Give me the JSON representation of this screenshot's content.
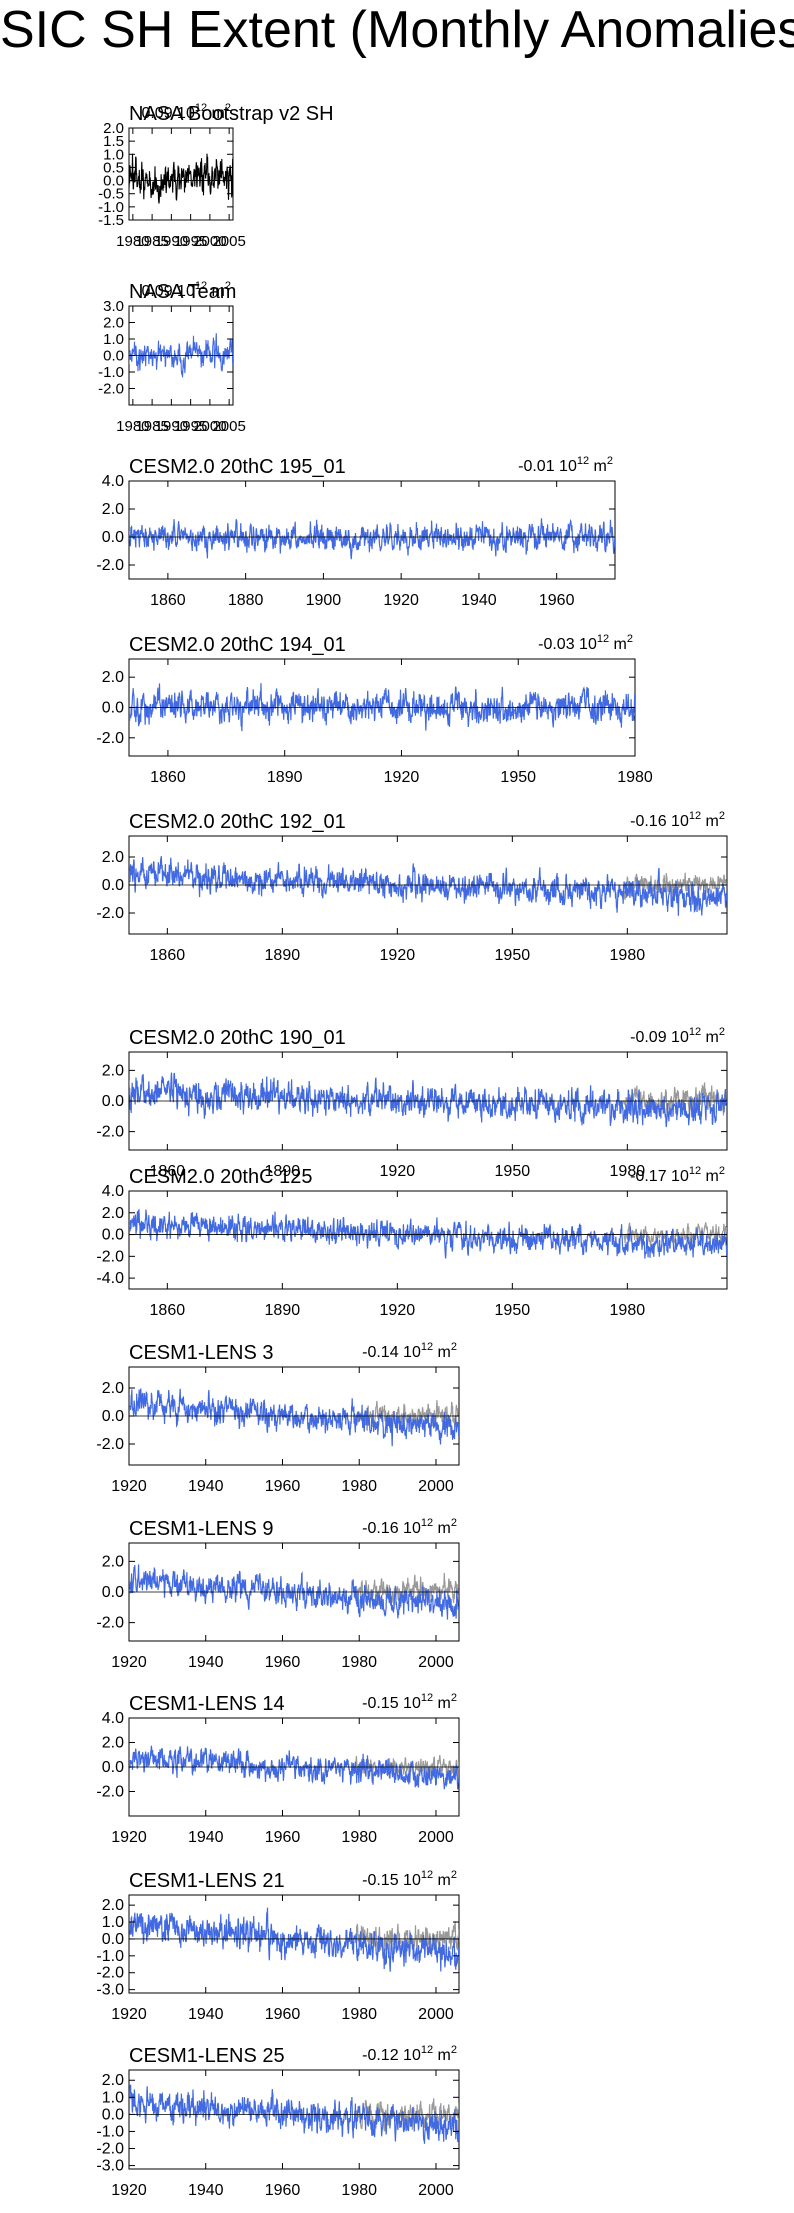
{
  "page": {
    "title": "SIC SH Extent (Monthly Anomalies)"
  },
  "colors": {
    "obs": "#000000",
    "model": "#4169e1",
    "obs_overlay": "#999999"
  },
  "chart_data": [
    {
      "type": "line",
      "title": "NASA Bootstrap v2 SH",
      "trend": "0.09 10",
      "trend_exp": "12",
      "trend_unit": " m",
      "trend_sup": "2",
      "xlim": [
        1979,
        2006
      ],
      "ylim": [
        -1.5,
        2.0
      ],
      "xticks": [
        1980,
        1985,
        1990,
        1995,
        2000,
        2005
      ],
      "yticks": [
        -1.5,
        -1.0,
        -0.5,
        0.0,
        0.5,
        1.0,
        1.5,
        2.0
      ],
      "ytick_labels": [
        "-1.5",
        "-1.0",
        "-0.5",
        "0.0",
        "0.5",
        "1.0",
        "1.5",
        "2.0"
      ],
      "series": [
        {
          "name": "obs",
          "color": "#000000",
          "start": 1979,
          "end": 2006,
          "amp": 0.45,
          "trend_per_year": 0.007,
          "seed": 11
        }
      ]
    },
    {
      "type": "line",
      "title": "NASA Team",
      "trend": "0.09 10",
      "trend_exp": "12",
      "trend_unit": " m",
      "trend_sup": "2",
      "xlim": [
        1979,
        2006
      ],
      "ylim": [
        -3.0,
        3.0
      ],
      "xticks": [
        1980,
        1985,
        1990,
        1995,
        2000,
        2005
      ],
      "yticks": [
        -2.0,
        -1.0,
        0.0,
        1.0,
        2.0,
        3.0
      ],
      "ytick_labels": [
        "-2.0",
        "-1.0",
        "0.0",
        "1.0",
        "2.0",
        "3.0"
      ],
      "series": [
        {
          "name": "model",
          "color": "#4169e1",
          "start": 1979,
          "end": 2006,
          "amp": 0.5,
          "trend_per_year": 0.007,
          "seed": 23
        }
      ]
    },
    {
      "type": "line",
      "title": "CESM2.0 20thC 195_01",
      "trend": "-0.01 10",
      "trend_exp": "12",
      "trend_unit": " m",
      "trend_sup": "2",
      "xlim": [
        1850,
        1975
      ],
      "ylim": [
        -3.0,
        4.0
      ],
      "xticks": [
        1860,
        1880,
        1900,
        1920,
        1940,
        1960
      ],
      "yticks": [
        -2.0,
        0.0,
        2.0,
        4.0
      ],
      "ytick_labels": [
        "-2.0",
        "0.0",
        "2.0",
        "4.0"
      ],
      "series": [
        {
          "name": "model",
          "color": "#4169e1",
          "start": 1850,
          "end": 1975,
          "amp": 0.55,
          "trend_per_year": -0.0002,
          "seed": 31
        }
      ]
    },
    {
      "type": "line",
      "title": "CESM2.0 20thC 194_01",
      "trend": "-0.03 10",
      "trend_exp": "12",
      "trend_unit": " m",
      "trend_sup": "2",
      "xlim": [
        1850,
        1980
      ],
      "ylim": [
        -3.2,
        3.2
      ],
      "xticks": [
        1860,
        1890,
        1920,
        1950,
        1980
      ],
      "yticks": [
        -2.0,
        0.0,
        2.0
      ],
      "ytick_labels": [
        "-2.0",
        "0.0",
        "2.0"
      ],
      "series": [
        {
          "name": "obs",
          "color": "#999999",
          "start": 1979,
          "end": 1980,
          "amp": 0.5,
          "trend_per_year": 0.0,
          "seed": 41
        },
        {
          "name": "model",
          "color": "#4169e1",
          "start": 1850,
          "end": 1980,
          "amp": 0.6,
          "trend_per_year": -0.0005,
          "seed": 43
        }
      ]
    },
    {
      "type": "line",
      "title": "CESM2.0 20thC 192_01",
      "trend": "-0.16 10",
      "trend_exp": "12",
      "trend_unit": " m",
      "trend_sup": "2",
      "xlim": [
        1850,
        2006
      ],
      "ylim": [
        -3.5,
        3.5
      ],
      "xticks": [
        1860,
        1890,
        1920,
        1950,
        1980
      ],
      "yticks": [
        -2.0,
        0.0,
        2.0
      ],
      "ytick_labels": [
        "-2.0",
        "0.0",
        "2.0"
      ],
      "series": [
        {
          "name": "obs",
          "color": "#999999",
          "start": 1979,
          "end": 2006,
          "amp": 0.45,
          "trend_per_year": 0.007,
          "seed": 51
        },
        {
          "name": "model",
          "color": "#4169e1",
          "start": 1850,
          "end": 2006,
          "amp": 0.6,
          "trend_per_year": -0.0115,
          "seed": 53
        }
      ]
    },
    {
      "type": "line",
      "title": "CESM2.0 20thC 190_01",
      "trend": "-0.09 10",
      "trend_exp": "12",
      "trend_unit": " m",
      "trend_sup": "2",
      "xlim": [
        1850,
        2006
      ],
      "ylim": [
        -3.2,
        3.2
      ],
      "xticks": [
        1860,
        1890,
        1920,
        1950,
        1980
      ],
      "yticks": [
        -2.0,
        0.0,
        2.0
      ],
      "ytick_labels": [
        "-2.0",
        "0.0",
        "2.0"
      ],
      "series": [
        {
          "name": "obs",
          "color": "#999999",
          "start": 1979,
          "end": 2006,
          "amp": 0.45,
          "trend_per_year": 0.007,
          "seed": 61
        },
        {
          "name": "model",
          "color": "#4169e1",
          "start": 1850,
          "end": 2006,
          "amp": 0.6,
          "trend_per_year": -0.0065,
          "seed": 63
        }
      ]
    },
    {
      "type": "line",
      "title": "CESM2.0 20thC 125",
      "trend": "-0.17 10",
      "trend_exp": "12",
      "trend_unit": " m",
      "trend_sup": "2",
      "xlim": [
        1850,
        2006
      ],
      "ylim": [
        -5.0,
        4.0
      ],
      "xticks": [
        1860,
        1890,
        1920,
        1950,
        1980
      ],
      "yticks": [
        -4.0,
        -2.0,
        0.0,
        2.0,
        4.0
      ],
      "ytick_labels": [
        "-4.0",
        "-2.0",
        "0.0",
        "2.0",
        "4.0"
      ],
      "series": [
        {
          "name": "obs",
          "color": "#999999",
          "start": 1979,
          "end": 2006,
          "amp": 0.45,
          "trend_per_year": 0.007,
          "seed": 71
        },
        {
          "name": "model",
          "color": "#4169e1",
          "start": 1850,
          "end": 2006,
          "amp": 0.7,
          "trend_per_year": -0.0125,
          "seed": 73
        }
      ]
    },
    {
      "type": "line",
      "title": "CESM1-LENS 3",
      "trend": "-0.14 10",
      "trend_exp": "12",
      "trend_unit": " m",
      "trend_sup": "2",
      "xlim": [
        1920,
        2006
      ],
      "ylim": [
        -3.5,
        3.5
      ],
      "xticks": [
        1920,
        1940,
        1960,
        1980,
        2000
      ],
      "yticks": [
        -2.0,
        0.0,
        2.0
      ],
      "ytick_labels": [
        "-2.0",
        "0.0",
        "2.0"
      ],
      "series": [
        {
          "name": "obs",
          "color": "#999999",
          "start": 1979,
          "end": 2006,
          "amp": 0.45,
          "trend_per_year": 0.007,
          "seed": 81
        },
        {
          "name": "model",
          "color": "#4169e1",
          "start": 1920,
          "end": 2006,
          "amp": 0.6,
          "trend_per_year": -0.019,
          "seed": 83
        }
      ]
    },
    {
      "type": "line",
      "title": "CESM1-LENS 9",
      "trend": "-0.16 10",
      "trend_exp": "12",
      "trend_unit": " m",
      "trend_sup": "2",
      "xlim": [
        1920,
        2006
      ],
      "ylim": [
        -3.2,
        3.2
      ],
      "xticks": [
        1920,
        1940,
        1960,
        1980,
        2000
      ],
      "yticks": [
        -2.0,
        0.0,
        2.0
      ],
      "ytick_labels": [
        "-2.0",
        "0.0",
        "2.0"
      ],
      "series": [
        {
          "name": "obs",
          "color": "#999999",
          "start": 1979,
          "end": 2006,
          "amp": 0.45,
          "trend_per_year": 0.007,
          "seed": 91
        },
        {
          "name": "model",
          "color": "#4169e1",
          "start": 1920,
          "end": 2006,
          "amp": 0.55,
          "trend_per_year": -0.021,
          "seed": 93
        }
      ]
    },
    {
      "type": "line",
      "title": "CESM1-LENS 14",
      "trend": "-0.15 10",
      "trend_exp": "12",
      "trend_unit": " m",
      "trend_sup": "2",
      "xlim": [
        1920,
        2006
      ],
      "ylim": [
        -4.0,
        4.0
      ],
      "xticks": [
        1920,
        1940,
        1960,
        1980,
        2000
      ],
      "yticks": [
        -2.0,
        0.0,
        2.0,
        4.0
      ],
      "ytick_labels": [
        "-2.0",
        "0.0",
        "2.0",
        "4.0"
      ],
      "series": [
        {
          "name": "obs",
          "color": "#999999",
          "start": 1979,
          "end": 2006,
          "amp": 0.45,
          "trend_per_year": 0.007,
          "seed": 101
        },
        {
          "name": "model",
          "color": "#4169e1",
          "start": 1920,
          "end": 2006,
          "amp": 0.6,
          "trend_per_year": -0.02,
          "seed": 103
        }
      ]
    },
    {
      "type": "line",
      "title": "CESM1-LENS 21",
      "trend": "-0.15 10",
      "trend_exp": "12",
      "trend_unit": " m",
      "trend_sup": "2",
      "xlim": [
        1920,
        2006
      ],
      "ylim": [
        -3.2,
        2.6
      ],
      "xticks": [
        1920,
        1940,
        1960,
        1980,
        2000
      ],
      "yticks": [
        -3.0,
        -2.0,
        -1.0,
        0.0,
        1.0,
        2.0
      ],
      "ytick_labels": [
        "-3.0",
        "-2.0",
        "-1.0",
        "0.0",
        "1.0",
        "2.0"
      ],
      "series": [
        {
          "name": "obs",
          "color": "#999999",
          "start": 1979,
          "end": 2006,
          "amp": 0.45,
          "trend_per_year": 0.007,
          "seed": 111
        },
        {
          "name": "model",
          "color": "#4169e1",
          "start": 1920,
          "end": 2006,
          "amp": 0.55,
          "trend_per_year": -0.02,
          "seed": 113
        }
      ]
    },
    {
      "type": "line",
      "title": "CESM1-LENS 25",
      "trend": "-0.12 10",
      "trend_exp": "12",
      "trend_unit": " m",
      "trend_sup": "2",
      "xlim": [
        1920,
        2006
      ],
      "ylim": [
        -3.2,
        2.6
      ],
      "xticks": [
        1920,
        1940,
        1960,
        1980,
        2000
      ],
      "yticks": [
        -3.0,
        -2.0,
        -1.0,
        0.0,
        1.0,
        2.0
      ],
      "ytick_labels": [
        "-3.0",
        "-2.0",
        "-1.0",
        "0.0",
        "1.0",
        "2.0"
      ],
      "series": [
        {
          "name": "obs",
          "color": "#999999",
          "start": 1979,
          "end": 2006,
          "amp": 0.45,
          "trend_per_year": 0.007,
          "seed": 121
        },
        {
          "name": "model",
          "color": "#4169e1",
          "start": 1920,
          "end": 2006,
          "amp": 0.55,
          "trend_per_year": -0.016,
          "seed": 123
        }
      ]
    }
  ]
}
